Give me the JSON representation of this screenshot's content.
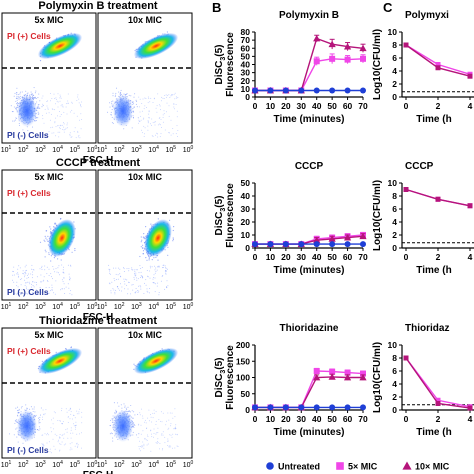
{
  "flow": {
    "rows": [
      {
        "title": "Polymyxin B treatment",
        "labels": [
          "5x MIC",
          "10x MIC"
        ],
        "pi_pos": "PI (+) Cells",
        "pi_neg": "PI (-) Cells",
        "gate": "mid"
      },
      {
        "title": "CCCP treatment",
        "labels": [
          "5x MIC",
          "10x MIC"
        ],
        "pi_pos": "PI (+) Cells",
        "pi_neg": "PI (-) Cells",
        "gate": "high"
      },
      {
        "title": "Thioridazine treatment",
        "labels": [
          "5x MIC",
          "10x MIC"
        ],
        "pi_pos": "PI (+) Cells",
        "pi_neg": "PI (-) Cells",
        "gate": "mid"
      }
    ],
    "x_ticks": [
      "10",
      "10",
      "10",
      "10",
      "10",
      "10"
    ],
    "x_exps": [
      "1",
      "2",
      "3",
      "4",
      "5",
      "0"
    ],
    "xlabel": "FSC-H",
    "pos_color": "#d9282f",
    "neg_color": "#2a3c9f"
  },
  "panel_labels": {
    "b": "B",
    "c": "C"
  },
  "chart_data": [
    {
      "type": "line",
      "title": "Polymyxin B",
      "ylabel_line1": "DiSC",
      "ylabel_sub": "3",
      "ylabel_rest": "(5)",
      "ylabel_line2": "Fluorescence",
      "xlabel": "Time (minutes)",
      "x": [
        0,
        10,
        20,
        30,
        40,
        50,
        60,
        70
      ],
      "xlim": [
        0,
        70
      ],
      "ylim": [
        0,
        80
      ],
      "yticks": [
        0,
        10,
        20,
        30,
        40,
        50,
        60,
        70,
        80
      ],
      "xticks": [
        0,
        10,
        20,
        30,
        40,
        50,
        60,
        70
      ],
      "series": [
        {
          "name": "Untreated",
          "values": [
            8,
            8,
            8,
            8,
            8,
            8,
            8,
            8
          ],
          "err": [
            1,
            1,
            1,
            1,
            1,
            1,
            1,
            1
          ],
          "color": "#1f3fd6",
          "marker": "circle"
        },
        {
          "name": "5× MIC",
          "values": [
            8,
            8,
            8,
            8,
            44,
            47,
            46,
            47
          ],
          "err": [
            1,
            1,
            1,
            1,
            5,
            6,
            5,
            5
          ],
          "color": "#f046e8",
          "marker": "square"
        },
        {
          "name": "10× MIC",
          "values": [
            8,
            8,
            8,
            8,
            72,
            65,
            62,
            60
          ],
          "err": [
            1,
            1,
            1,
            1,
            4,
            6,
            5,
            5
          ],
          "color": "#b5147a",
          "marker": "triangle"
        }
      ]
    },
    {
      "type": "line",
      "title": "CCCP",
      "ylabel_line1": "DiSC",
      "ylabel_sub": "3",
      "ylabel_rest": "(5)",
      "ylabel_line2": "Fluorescence",
      "xlabel": "Time (minutes)",
      "x": [
        0,
        10,
        20,
        30,
        40,
        50,
        60,
        70
      ],
      "xlim": [
        0,
        70
      ],
      "ylim": [
        0,
        50
      ],
      "yticks": [
        0,
        10,
        20,
        30,
        40,
        50
      ],
      "xticks": [
        0,
        10,
        20,
        30,
        40,
        50,
        60,
        70
      ],
      "series": [
        {
          "name": "Untreated",
          "values": [
            3,
            3,
            3,
            3,
            3,
            3,
            3,
            3
          ],
          "err": [
            1,
            1,
            1,
            1,
            1,
            1,
            1,
            1
          ],
          "color": "#1f3fd6",
          "marker": "circle"
        },
        {
          "name": "5× MIC",
          "values": [
            3,
            3,
            3,
            3,
            7,
            8,
            9,
            10
          ],
          "err": [
            1,
            1,
            1,
            1,
            2,
            2,
            2,
            2
          ],
          "color": "#f046e8",
          "marker": "square"
        },
        {
          "name": "10× MIC",
          "values": [
            3,
            3,
            3,
            3,
            6,
            7,
            8,
            9
          ],
          "err": [
            1,
            1,
            1,
            1,
            2,
            2,
            2,
            2
          ],
          "color": "#b5147a",
          "marker": "triangle"
        }
      ]
    },
    {
      "type": "line",
      "title": "Thioridazine",
      "ylabel_line1": "DiSC",
      "ylabel_sub": "3",
      "ylabel_rest": "(5)",
      "ylabel_line2": "Fluorescence",
      "xlabel": "Time (minutes)",
      "x": [
        0,
        10,
        20,
        30,
        40,
        50,
        60,
        70
      ],
      "xlim": [
        0,
        70
      ],
      "ylim": [
        0,
        200
      ],
      "yticks": [
        0,
        50,
        100,
        150,
        200
      ],
      "xticks": [
        0,
        10,
        20,
        30,
        40,
        50,
        60,
        70
      ],
      "series": [
        {
          "name": "Untreated",
          "values": [
            8,
            8,
            8,
            8,
            8,
            8,
            8,
            8
          ],
          "err": [
            2,
            2,
            2,
            2,
            2,
            2,
            2,
            2
          ],
          "color": "#1f3fd6",
          "marker": "circle"
        },
        {
          "name": "5× MIC",
          "values": [
            8,
            8,
            8,
            8,
            120,
            118,
            115,
            112
          ],
          "err": [
            2,
            2,
            2,
            2,
            8,
            8,
            8,
            8
          ],
          "color": "#f046e8",
          "marker": "square"
        },
        {
          "name": "10× MIC",
          "values": [
            8,
            8,
            8,
            8,
            100,
            102,
            100,
            100
          ],
          "err": [
            2,
            2,
            2,
            2,
            8,
            8,
            8,
            8
          ],
          "color": "#b5147a",
          "marker": "triangle"
        }
      ]
    },
    {
      "type": "line",
      "title": "Polymyxi",
      "ylabel": "Log10(CFU/ml)",
      "xlabel": "Time (h",
      "x": [
        0,
        2,
        4
      ],
      "xlim": [
        0,
        4
      ],
      "ylim": [
        0,
        10
      ],
      "yticks": [
        0,
        2,
        4,
        6,
        8,
        10
      ],
      "xticks": [
        0,
        2,
        4
      ],
      "series": [
        {
          "name": "5× MIC",
          "values": [
            8,
            5,
            3.5
          ],
          "color": "#f046e8"
        },
        {
          "name": "10× MIC",
          "values": [
            8,
            4.5,
            3.2
          ],
          "color": "#b5147a"
        }
      ],
      "reference_line": 0.8
    },
    {
      "type": "line",
      "title": "CCCP",
      "ylabel": "Log10(CFU/ml)",
      "xlabel": "Time (h",
      "x": [
        0,
        2,
        4
      ],
      "xlim": [
        0,
        4
      ],
      "ylim": [
        0,
        10
      ],
      "yticks": [
        0,
        2,
        4,
        6,
        8,
        10
      ],
      "xticks": [
        0,
        2,
        4
      ],
      "series": [
        {
          "name": "5× MIC",
          "values": [
            9,
            7.5,
            6.5
          ],
          "color": "#f046e8"
        },
        {
          "name": "10× MIC",
          "values": [
            9,
            7.5,
            6.5
          ],
          "color": "#b5147a"
        }
      ],
      "reference_line": 0.8
    },
    {
      "type": "line",
      "title": "Thioridaz",
      "ylabel": "Log10(CFU/ml)",
      "xlabel": "Time (h",
      "x": [
        0,
        2,
        4
      ],
      "xlim": [
        0,
        4
      ],
      "ylim": [
        0,
        10
      ],
      "yticks": [
        0,
        2,
        4,
        6,
        8,
        10
      ],
      "xticks": [
        0,
        2,
        4
      ],
      "series": [
        {
          "name": "5× MIC",
          "values": [
            8,
            1.5,
            0.5
          ],
          "color": "#f046e8"
        },
        {
          "name": "10× MIC",
          "values": [
            8,
            1.0,
            0.3
          ],
          "color": "#b5147a"
        }
      ],
      "reference_line": 0.8
    }
  ],
  "legend": [
    {
      "label": "Untreated",
      "color": "#1f3fd6",
      "marker": "circle"
    },
    {
      "label": "5× MIC",
      "color": "#f046e8",
      "marker": "square"
    },
    {
      "label": "10× MIC",
      "color": "#b5147a",
      "marker": "triangle"
    }
  ]
}
